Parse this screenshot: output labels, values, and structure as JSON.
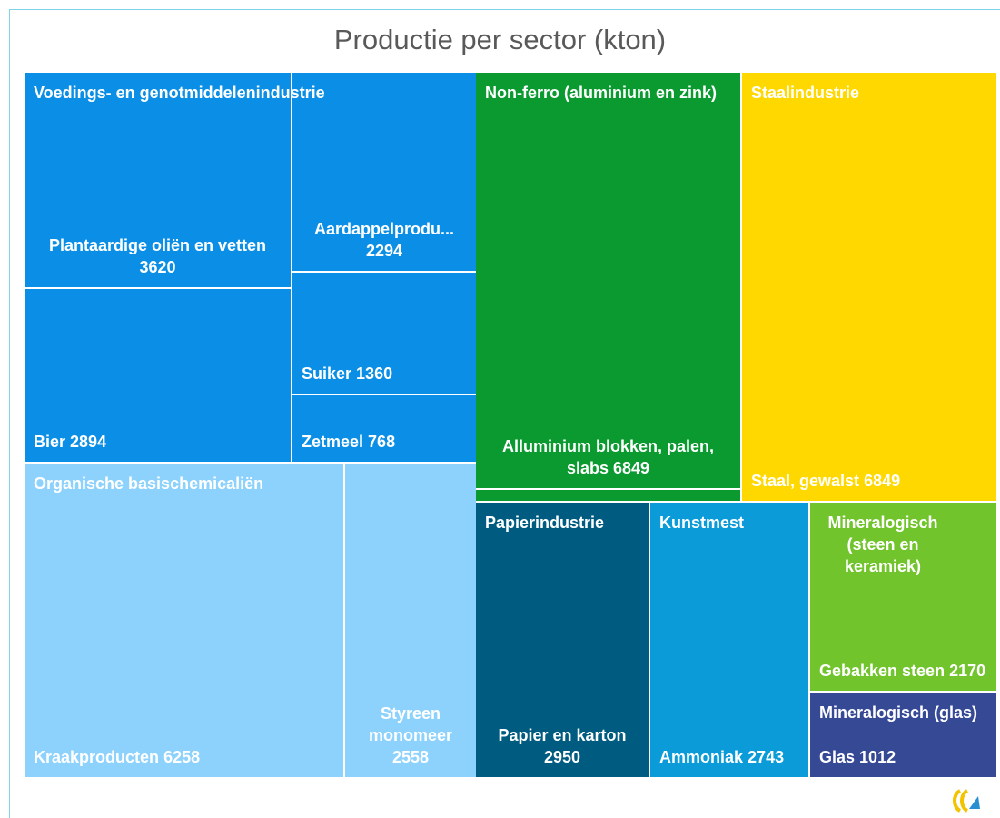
{
  "chart_data": {
    "type": "treemap",
    "title": "Productie per sector (kton)",
    "groups": [
      {
        "name": "Voedings- en genotmiddelenindustrie",
        "color": "#0b8fe6",
        "items": [
          {
            "name": "Plantaardige oliën en vetten",
            "value": 3620
          },
          {
            "name": "Bier",
            "value": 2894
          },
          {
            "name": "Aardappelprodu...",
            "value": 2294
          },
          {
            "name": "Suiker",
            "value": 1360
          },
          {
            "name": "Zetmeel",
            "value": 768
          }
        ]
      },
      {
        "name": "Organische basischemicaliën",
        "color": "#8dd2fd",
        "items": [
          {
            "name": "Kraakproducten",
            "value": 6258
          },
          {
            "name": "Styreen monomeer",
            "value": 2558
          }
        ]
      },
      {
        "name": "Non-ferro (aluminium en zink)",
        "color": "#0a9a30",
        "items": [
          {
            "name": "Alluminium blokken, palen, slabs",
            "value": 6849
          },
          {
            "name": null,
            "value": 211
          }
        ]
      },
      {
        "name": "Staalindustrie",
        "color": "#ffd800",
        "items": [
          {
            "name": "Staal, gewalst",
            "value": 6849
          }
        ]
      },
      {
        "name": "Papierindustrie",
        "color": "#005b80",
        "items": [
          {
            "name": "Papier en karton",
            "value": 2950
          }
        ]
      },
      {
        "name": "Kunstmest",
        "color": "#0a9bd8",
        "items": [
          {
            "name": "Ammoniak",
            "value": 2743
          }
        ]
      },
      {
        "name": "Mineralogisch (steen en keramiek)",
        "color": "#72c42d",
        "items": [
          {
            "name": "Gebakken steen",
            "value": 2170
          }
        ]
      },
      {
        "name": "Mineralogisch (glas)",
        "color": "#364995",
        "items": [
          {
            "name": "Glas",
            "value": 1012
          }
        ]
      }
    ]
  }
}
